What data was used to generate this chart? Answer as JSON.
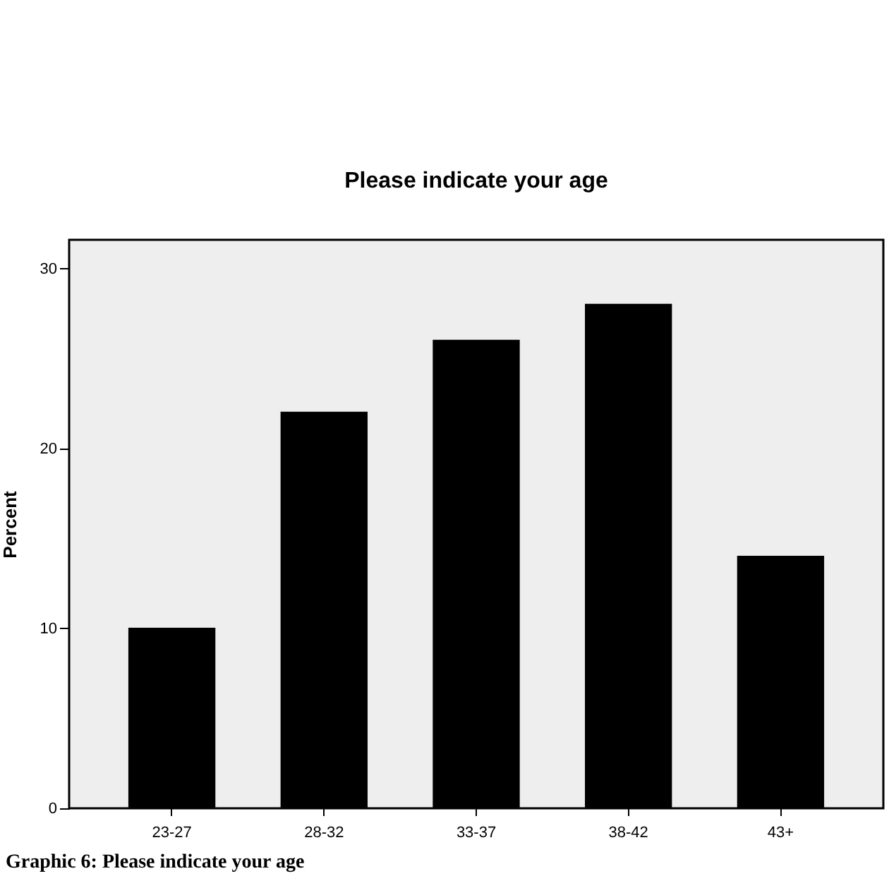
{
  "chart_data": {
    "type": "bar",
    "title": "Please indicate your age",
    "ylabel": "Percent",
    "categories": [
      "23-27",
      "28-32",
      "33-37",
      "38-42",
      "43+"
    ],
    "values": [
      10,
      22,
      26,
      28,
      14
    ],
    "color": "#000000",
    "ylim": [
      0,
      31.6
    ],
    "yticks": [
      0,
      10,
      20,
      30
    ],
    "grid": false,
    "annotations": [
      "Graphic 6: Please indicate your age"
    ]
  }
}
